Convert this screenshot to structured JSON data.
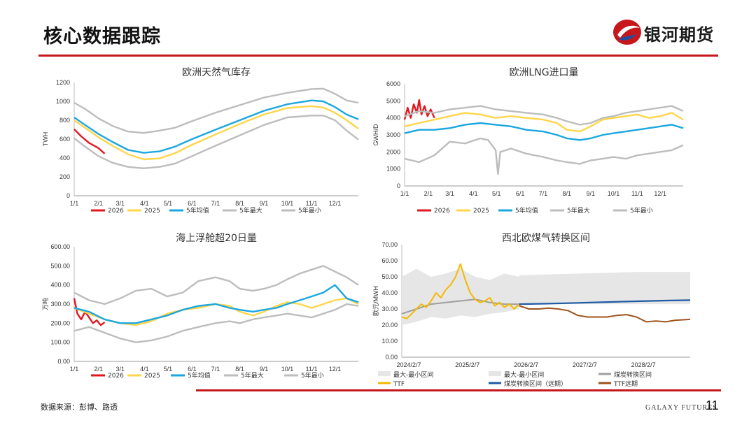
{
  "page": {
    "title": "核心数据跟踪",
    "brand": "银河期货",
    "source": "数据来源：彭博、路透",
    "footer_brand": "GALAXY FUTURES",
    "page_number": "11"
  },
  "colors": {
    "accent_red": "#c6171c",
    "y2026": "#e2171e",
    "y2025": "#ffd54a",
    "avg5": "#1aa7e0",
    "max5": "#bdbdbd",
    "min5": "#bdbdbd",
    "range_band": "#e6e6e6",
    "ttf": "#f5b800",
    "coal_switch": "#9e9e9e",
    "coal_fwd": "#1f5aa6",
    "ttf_fwd": "#a0521d"
  },
  "chart_data": [
    {
      "id": "eu-storage",
      "type": "line",
      "title": "欧洲天然气库存",
      "ylabel": "TWH",
      "ylim": [
        0,
        1200
      ],
      "yticks": [
        "0",
        "200",
        "400",
        "600",
        "800",
        "1000",
        "1200"
      ],
      "xlim": [
        1,
        365
      ],
      "xtick_days": [
        1,
        32,
        60,
        91,
        121,
        152,
        182,
        213,
        244,
        274,
        305,
        335
      ],
      "xtick_labels": [
        "1/1",
        "2/1",
        "3/1",
        "4/1",
        "5/1",
        "6/1",
        "7/1",
        "8/1",
        "9/1",
        "10/1",
        "11/1",
        "12/1"
      ],
      "series": [
        {
          "name": "2026",
          "key": "y2026",
          "x": [
            1,
            10,
            20,
            32,
            40
          ],
          "y": [
            705,
            630,
            560,
            505,
            445
          ]
        },
        {
          "name": "2025",
          "key": "y2025",
          "x": [
            1,
            15,
            32,
            50,
            70,
            90,
            110,
            130,
            152,
            182,
            213,
            244,
            274,
            305,
            320,
            335,
            350,
            365
          ],
          "y": [
            800,
            720,
            620,
            530,
            440,
            385,
            395,
            450,
            540,
            650,
            760,
            860,
            930,
            950,
            935,
            880,
            800,
            710
          ]
        },
        {
          "name": "5年均值",
          "key": "avg5",
          "x": [
            1,
            15,
            32,
            50,
            70,
            90,
            110,
            130,
            152,
            182,
            213,
            244,
            274,
            305,
            320,
            335,
            350,
            365
          ],
          "y": [
            830,
            750,
            655,
            570,
            485,
            455,
            470,
            520,
            600,
            700,
            800,
            900,
            970,
            1010,
            1000,
            940,
            860,
            810
          ]
        },
        {
          "name": "5年最大",
          "key": "max5",
          "x": [
            1,
            15,
            32,
            50,
            70,
            90,
            110,
            130,
            152,
            182,
            213,
            244,
            274,
            305,
            320,
            335,
            350,
            365
          ],
          "y": [
            985,
            920,
            820,
            740,
            680,
            665,
            690,
            720,
            790,
            880,
            960,
            1040,
            1090,
            1130,
            1135,
            1080,
            1010,
            985
          ]
        },
        {
          "name": "5年最小",
          "key": "min5",
          "x": [
            1,
            15,
            32,
            50,
            70,
            90,
            110,
            130,
            152,
            182,
            213,
            244,
            274,
            305,
            320,
            335,
            350,
            365
          ],
          "y": [
            610,
            520,
            420,
            350,
            305,
            290,
            305,
            340,
            420,
            530,
            640,
            750,
            830,
            850,
            850,
            800,
            690,
            595
          ]
        }
      ]
    },
    {
      "id": "eu-lng",
      "type": "line",
      "title": "欧洲LNG进口量",
      "ylabel": "GWH/D",
      "ylim": [
        0,
        6000
      ],
      "yticks": [
        "0",
        "1000",
        "2000",
        "3000",
        "4000",
        "5000",
        "6000"
      ],
      "xlim": [
        1,
        365
      ],
      "xtick_days": [
        1,
        32,
        60,
        91,
        121,
        152,
        182,
        213,
        244,
        274,
        305,
        335
      ],
      "xtick_labels": [
        "1/1",
        "2/1",
        "3/1",
        "4/1",
        "5/1",
        "6/1",
        "7/1",
        "8/1",
        "9/1",
        "10/1",
        "11/1",
        "12/1"
      ],
      "series": [
        {
          "name": "2026",
          "key": "y2026",
          "x": [
            1,
            5,
            9,
            13,
            17,
            20,
            23,
            27,
            31,
            35,
            40
          ],
          "y": [
            3900,
            4600,
            4000,
            4800,
            4300,
            5050,
            4200,
            4700,
            4100,
            4500,
            4000
          ]
        },
        {
          "name": "2025",
          "key": "y2025",
          "x": [
            1,
            20,
            40,
            60,
            80,
            100,
            120,
            140,
            160,
            182,
            200,
            213,
            230,
            244,
            260,
            274,
            290,
            305,
            320,
            335,
            350,
            365
          ],
          "y": [
            3500,
            3700,
            3900,
            4100,
            4300,
            4200,
            4000,
            4100,
            4000,
            3900,
            3700,
            3300,
            3200,
            3500,
            3900,
            4000,
            4100,
            4200,
            4000,
            4100,
            4300,
            3900
          ]
        },
        {
          "name": "5年均值",
          "key": "avg5",
          "x": [
            1,
            20,
            40,
            60,
            80,
            100,
            120,
            140,
            160,
            182,
            200,
            213,
            230,
            244,
            260,
            274,
            290,
            305,
            320,
            335,
            350,
            365
          ],
          "y": [
            3100,
            3300,
            3300,
            3400,
            3600,
            3700,
            3600,
            3500,
            3300,
            3200,
            3000,
            2800,
            2700,
            2800,
            3000,
            3100,
            3200,
            3300,
            3400,
            3500,
            3600,
            3400
          ]
        },
        {
          "name": "5年最大",
          "key": "max5",
          "x": [
            1,
            20,
            40,
            60,
            80,
            100,
            120,
            140,
            160,
            182,
            200,
            213,
            230,
            244,
            260,
            274,
            290,
            305,
            320,
            335,
            350,
            365
          ],
          "y": [
            4100,
            4400,
            4300,
            4500,
            4600,
            4700,
            4500,
            4400,
            4300,
            4200,
            4000,
            3800,
            3600,
            3700,
            4000,
            4100,
            4300,
            4400,
            4500,
            4600,
            4700,
            4400
          ]
        },
        {
          "name": "5年最小",
          "key": "min5",
          "x": [
            1,
            20,
            40,
            60,
            80,
            100,
            110,
            120,
            123,
            126,
            140,
            160,
            182,
            200,
            213,
            230,
            244,
            260,
            274,
            290,
            305,
            320,
            335,
            350,
            365
          ],
          "y": [
            1600,
            1400,
            1800,
            2600,
            2500,
            2800,
            2700,
            2100,
            700,
            2000,
            2200,
            1900,
            1700,
            1500,
            1400,
            1300,
            1500,
            1600,
            1700,
            1600,
            1800,
            1900,
            2000,
            2100,
            2400
          ]
        }
      ]
    },
    {
      "id": "floating-storage",
      "type": "line",
      "title": "海上浮舱超20日量",
      "ylabel": "万吨",
      "ylim": [
        0,
        600
      ],
      "yticks": [
        "0.00",
        "100.00",
        "200.00",
        "300.00",
        "400.00",
        "500.00",
        "600.00"
      ],
      "xlim": [
        1,
        365
      ],
      "xtick_days": [
        1,
        32,
        60,
        91,
        121,
        152,
        182,
        213,
        244,
        274,
        305,
        335
      ],
      "xtick_labels": [
        "1/1",
        "2/1",
        "3/1",
        "4/1",
        "5/1",
        "6/1",
        "7/1",
        "8/1",
        "9/1",
        "10/1",
        "11/1",
        "12/1"
      ],
      "series": [
        {
          "name": "2026",
          "key": "y2026",
          "x": [
            1,
            5,
            10,
            15,
            20,
            25,
            30,
            35,
            40
          ],
          "y": [
            330,
            250,
            220,
            260,
            230,
            200,
            215,
            190,
            205
          ]
        },
        {
          "name": "2025",
          "key": "y2025",
          "x": [
            1,
            20,
            40,
            60,
            80,
            100,
            120,
            140,
            160,
            182,
            200,
            213,
            230,
            244,
            260,
            274,
            290,
            305,
            320,
            335,
            350,
            365
          ],
          "y": [
            280,
            250,
            220,
            200,
            190,
            210,
            250,
            270,
            280,
            300,
            290,
            260,
            240,
            260,
            290,
            310,
            300,
            280,
            300,
            320,
            330,
            300
          ]
        },
        {
          "name": "5年均值",
          "key": "avg5",
          "x": [
            1,
            20,
            40,
            60,
            80,
            100,
            120,
            140,
            160,
            182,
            200,
            213,
            230,
            244,
            260,
            274,
            290,
            305,
            320,
            335,
            350,
            365
          ],
          "y": [
            280,
            260,
            220,
            200,
            200,
            220,
            240,
            270,
            290,
            300,
            280,
            270,
            260,
            270,
            280,
            300,
            320,
            340,
            360,
            400,
            330,
            310
          ]
        },
        {
          "name": "5年最大",
          "key": "max5",
          "x": [
            1,
            20,
            40,
            60,
            80,
            100,
            120,
            140,
            160,
            182,
            200,
            213,
            230,
            244,
            260,
            274,
            290,
            305,
            320,
            335,
            350,
            365
          ],
          "y": [
            360,
            320,
            300,
            330,
            370,
            380,
            340,
            360,
            420,
            440,
            420,
            380,
            370,
            380,
            400,
            430,
            460,
            480,
            500,
            470,
            440,
            400
          ]
        },
        {
          "name": "5年最小",
          "key": "min5",
          "x": [
            1,
            20,
            40,
            60,
            80,
            100,
            120,
            140,
            160,
            182,
            200,
            213,
            230,
            244,
            260,
            274,
            290,
            305,
            320,
            335,
            350,
            365
          ],
          "y": [
            160,
            180,
            150,
            120,
            100,
            110,
            130,
            160,
            180,
            200,
            210,
            200,
            220,
            230,
            240,
            250,
            240,
            230,
            250,
            270,
            300,
            290
          ]
        }
      ]
    },
    {
      "id": "nw-europe-coal-switch",
      "type": "area",
      "title": "西北欧煤气转换区间",
      "ylabel": "欧元/MWH",
      "ylim": [
        0,
        70
      ],
      "yticks": [
        "0.00",
        "10.00",
        "20.00",
        "30.00",
        "40.00",
        "50.00",
        "60.00",
        "70.00"
      ],
      "xlim": [
        0,
        59
      ],
      "xtick_pos": [
        0,
        12,
        24,
        36,
        48
      ],
      "xtick_labels": [
        "2024/2/7",
        "2025/2/7",
        "2026/2/7",
        "2027/2/7",
        "2028/2/7"
      ],
      "series": [
        {
          "name": "最大-最小区间",
          "key": "range_band",
          "kind": "band",
          "x": [
            0,
            3,
            6,
            9,
            12,
            15,
            18,
            21,
            24
          ],
          "ylow": [
            20,
            22,
            25,
            24,
            26,
            25,
            27,
            28,
            30
          ],
          "yhigh": [
            50,
            55,
            50,
            52,
            55,
            50,
            48,
            52,
            50
          ]
        },
        {
          "name": "最大-最小区间",
          "key": "range_band",
          "kind": "band",
          "x": [
            24,
            36,
            48,
            59
          ],
          "ylow": [
            33,
            33,
            33,
            33
          ],
          "yhigh": [
            51,
            52,
            53,
            53
          ]
        },
        {
          "name": "煤炭转换区间",
          "key": "coal_switch",
          "kind": "line",
          "x": [
            0,
            3,
            6,
            9,
            12,
            15,
            18,
            21,
            24
          ],
          "y": [
            27,
            30,
            33,
            34,
            35,
            36,
            34,
            33,
            33
          ]
        },
        {
          "name": "TTF",
          "key": "ttf",
          "kind": "line",
          "x": [
            0,
            1,
            2,
            3,
            4,
            5,
            6,
            7,
            8,
            9,
            10,
            11,
            12,
            13,
            14,
            15,
            16,
            17,
            18,
            19,
            20,
            21,
            22,
            23,
            24
          ],
          "y": [
            25,
            24,
            27,
            30,
            33,
            31,
            35,
            40,
            37,
            42,
            45,
            50,
            58,
            48,
            40,
            36,
            34,
            35,
            37,
            32,
            34,
            31,
            33,
            30,
            33
          ]
        },
        {
          "name": "煤炭转换区间（远期）",
          "key": "coal_fwd",
          "kind": "line",
          "x": [
            24,
            30,
            36,
            42,
            48,
            54,
            59
          ],
          "y": [
            33,
            33.3,
            33.8,
            34.3,
            34.8,
            35.2,
            35.5
          ]
        },
        {
          "name": "TTF远期",
          "key": "ttf_fwd",
          "kind": "line",
          "x": [
            24,
            26,
            28,
            30,
            32,
            34,
            36,
            38,
            40,
            42,
            44,
            46,
            48,
            50,
            52,
            54,
            56,
            59
          ],
          "y": [
            32,
            30,
            30,
            30.5,
            30,
            29,
            26,
            25,
            25,
            25,
            26,
            26.5,
            25,
            22,
            22.5,
            22,
            23,
            23.5
          ]
        }
      ],
      "legend": [
        "最大-最小区间",
        "最大-最小区间",
        "煤炭转换区间",
        "TTF",
        "煤炭转换区间（远期）",
        "TTF远期"
      ]
    }
  ]
}
